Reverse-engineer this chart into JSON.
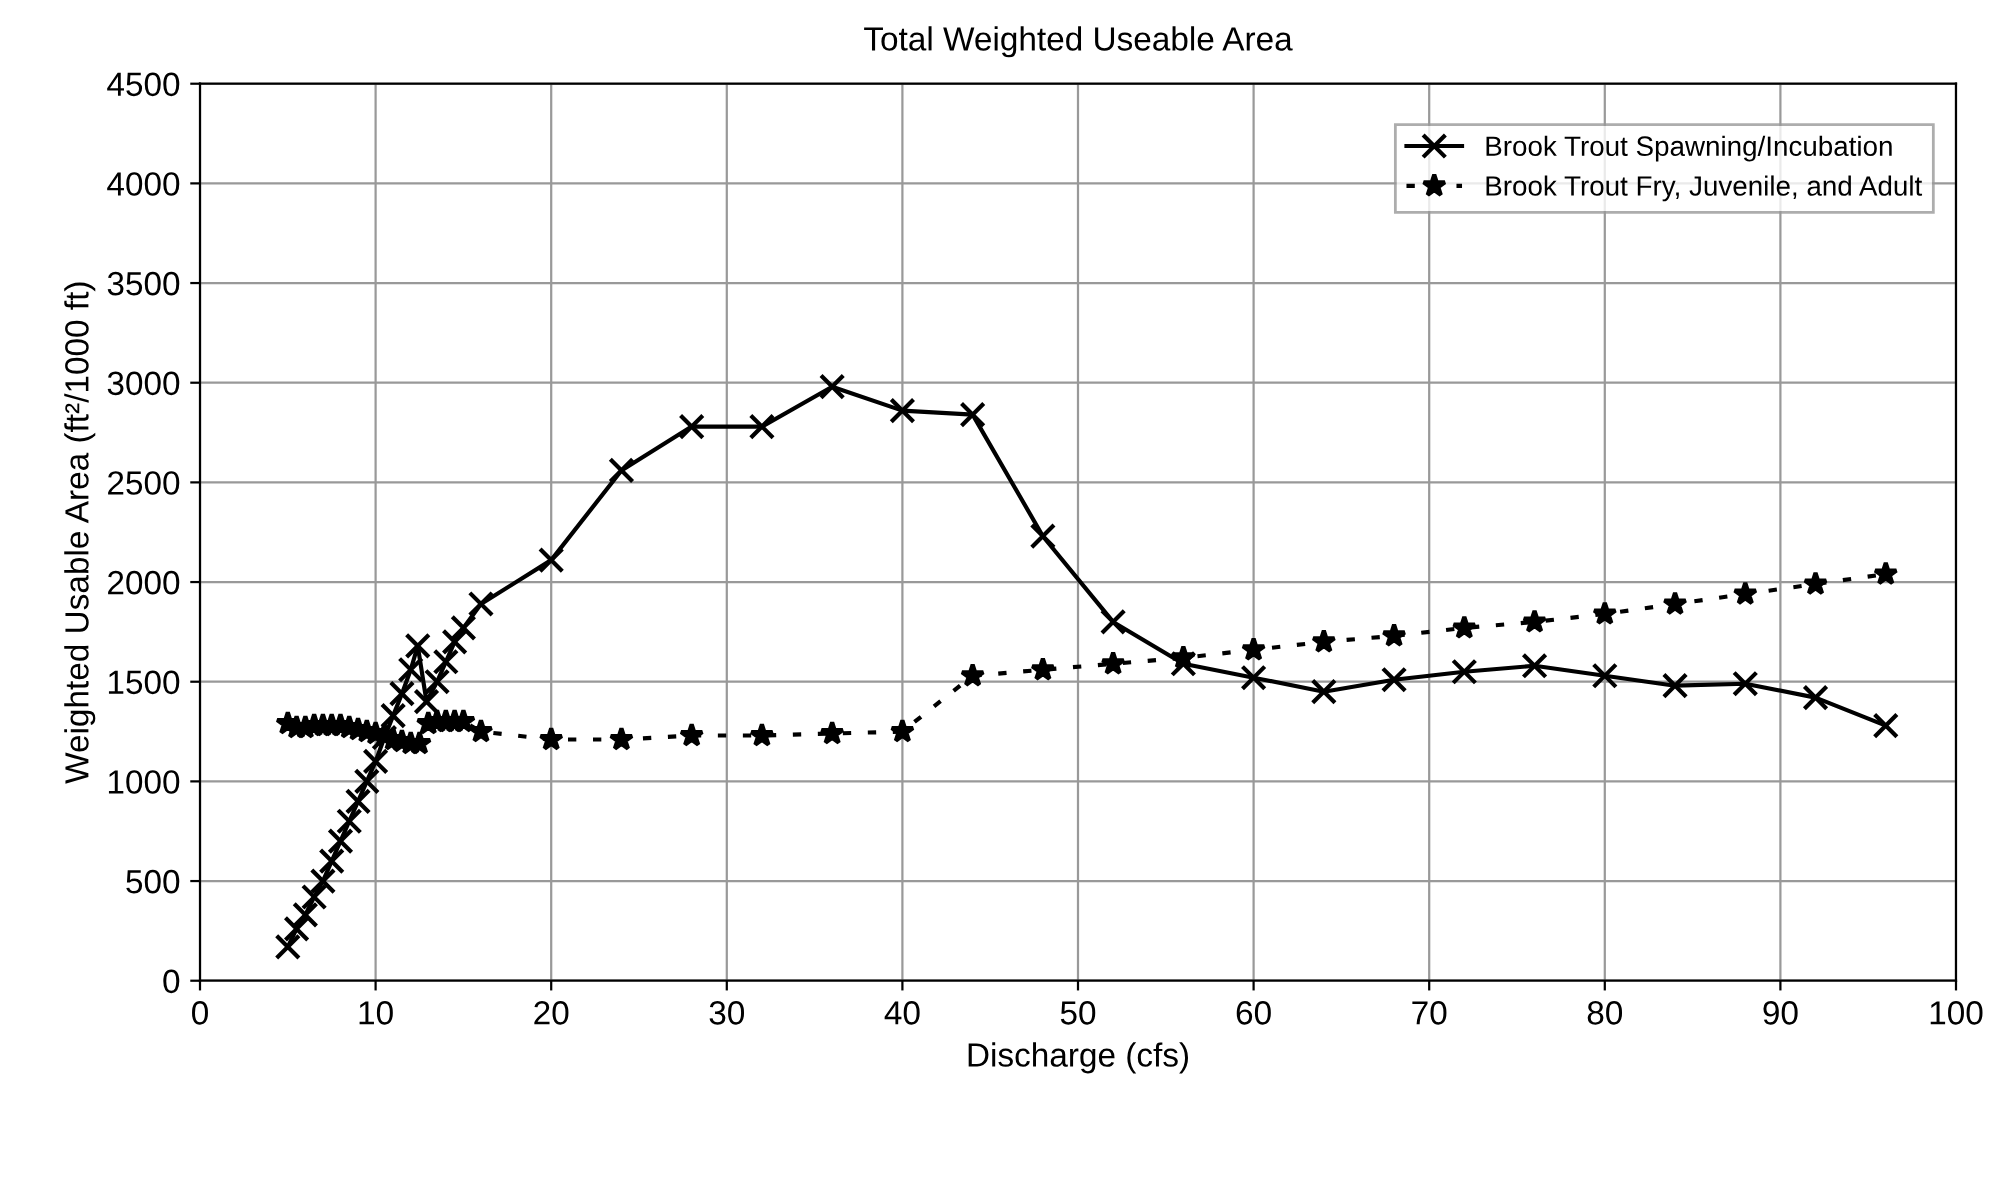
{
  "chart_data": {
    "type": "line",
    "title": "Total Weighted Useable Area",
    "xlabel": "Discharge (cfs)",
    "ylabel": "Weighted Usable Area (ft²/1000 ft)",
    "xlim": [
      0,
      100
    ],
    "xticks": [
      0,
      10,
      20,
      30,
      40,
      50,
      60,
      70,
      80,
      90,
      100
    ],
    "ylim": [
      0,
      4500
    ],
    "yticks": [
      0,
      500,
      1000,
      1500,
      2000,
      2500,
      3000,
      3500,
      4000,
      4500
    ],
    "grid": true,
    "legend": "top right",
    "series": [
      {
        "name": "Brook Trout Spawning/Incubation",
        "color": "#000000",
        "marker": "cross",
        "line_style": "solid",
        "x": [
          5,
          5.5,
          6,
          6.5,
          7,
          7.5,
          8,
          8.5,
          9,
          9.5,
          10,
          10.5,
          11,
          11.5,
          12,
          12.4,
          12.9,
          13.5,
          14,
          14.5,
          15,
          16,
          20,
          24,
          28,
          32,
          36,
          40,
          44,
          48,
          52,
          56,
          60,
          64,
          68,
          72,
          76,
          80,
          84,
          88,
          92,
          96
        ],
        "values": [
          170,
          260,
          330,
          420,
          500,
          600,
          700,
          800,
          900,
          1000,
          1100,
          1220,
          1330,
          1440,
          1560,
          1680,
          1400,
          1500,
          1600,
          1700,
          1770,
          1890,
          2110,
          2560,
          2780,
          2780,
          2980,
          2860,
          2840,
          2230,
          1800,
          1590,
          1520,
          1450,
          1510,
          1550,
          1580,
          1530,
          1480,
          1490,
          1420,
          1280
        ]
      },
      {
        "name": "Brook Trout Fry, Juvenile, and Adult",
        "color": "#000000",
        "marker": "star",
        "line_style": "dotted",
        "x": [
          5,
          5.5,
          6,
          6.5,
          7,
          7.5,
          8,
          8.5,
          9,
          9.5,
          10,
          10.5,
          11,
          11.5,
          12,
          12.5,
          13,
          13.5,
          14,
          14.5,
          15,
          16,
          20,
          24,
          28,
          32,
          36,
          40,
          44,
          48,
          52,
          56,
          60,
          64,
          68,
          72,
          76,
          80,
          84,
          88,
          92,
          96
        ],
        "values": [
          1290,
          1270,
          1270,
          1280,
          1280,
          1280,
          1280,
          1270,
          1260,
          1250,
          1240,
          1230,
          1210,
          1200,
          1190,
          1190,
          1290,
          1300,
          1300,
          1300,
          1300,
          1250,
          1210,
          1210,
          1230,
          1230,
          1240,
          1250,
          1530,
          1560,
          1590,
          1620,
          1660,
          1700,
          1730,
          1770,
          1800,
          1840,
          1890,
          1940,
          1990,
          2040
        ]
      }
    ]
  }
}
